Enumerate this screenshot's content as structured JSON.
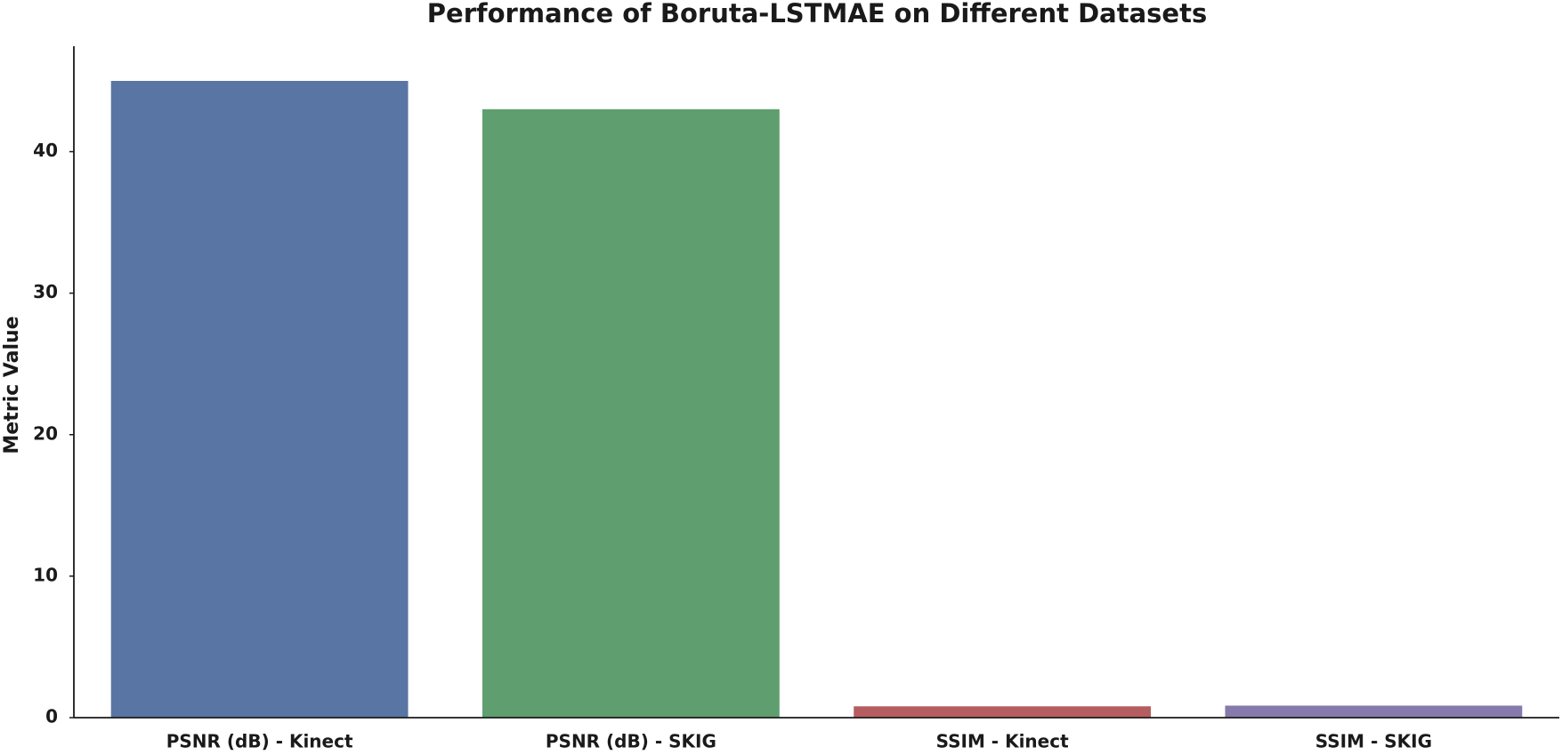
{
  "chart_data": {
    "type": "bar",
    "title": "Performance of Boruta-LSTMAE on Different Datasets",
    "y_label": "Metric Value",
    "categories": [
      "PSNR (dB) - Kinect",
      "PSNR (dB) - SKIG",
      "SSIM - Kinect",
      "SSIM - SKIG"
    ],
    "values": [
      45.0,
      43.0,
      0.8,
      0.85
    ],
    "colors": [
      "#5975a4",
      "#5f9e6e",
      "#b55d60",
      "#857aab"
    ],
    "ylim": [
      0,
      47.45
    ],
    "yticks": [
      0,
      10,
      20,
      30,
      40
    ],
    "grid": false
  }
}
